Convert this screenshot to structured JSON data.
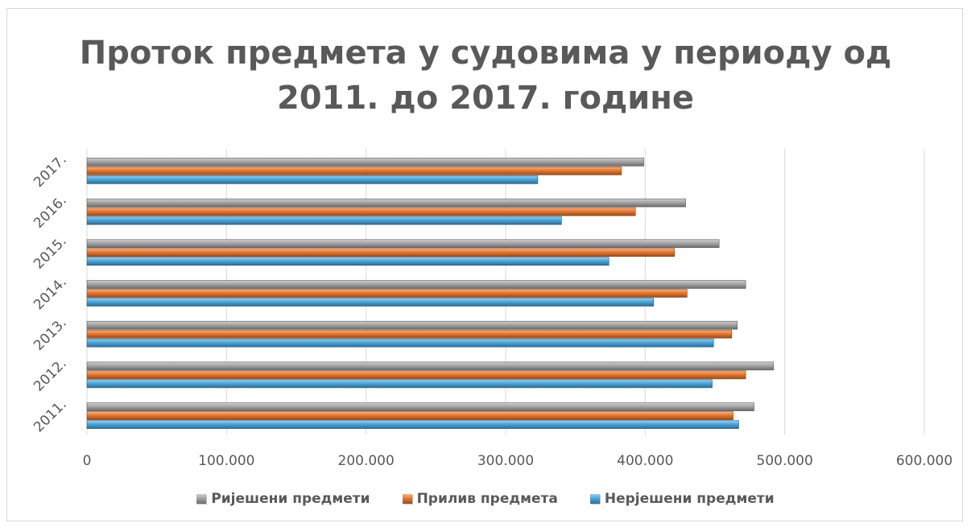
{
  "chart_data": {
    "type": "bar",
    "orientation": "horizontal",
    "title_line1": "Проток предмета у судовима у периоду од",
    "title_line2": "2011. до 2017. године",
    "categories": [
      "2011.",
      "2012.",
      "2013.",
      "2014.",
      "2015.",
      "2016.",
      "2017."
    ],
    "series": [
      {
        "name": "Нерјешени предмети",
        "color": "#4aa6dc",
        "values": [
          467000,
          448000,
          449000,
          406000,
          374000,
          340000,
          323000
        ]
      },
      {
        "name": "Прилив предмета",
        "color": "#e8772e",
        "values": [
          463000,
          472000,
          462000,
          430000,
          421000,
          393000,
          383000
        ]
      },
      {
        "name": "Ријешени предмети",
        "color": "#a5a5a5",
        "values": [
          478000,
          492000,
          466000,
          472000,
          453000,
          429000,
          399000
        ]
      }
    ],
    "x_ticks": [
      "0",
      "100.000",
      "200.000",
      "300.000",
      "400.000",
      "500.000",
      "600.000"
    ],
    "xlim": [
      0,
      600000
    ],
    "grid": true,
    "legend_position": "bottom",
    "legend_order": [
      "Ријешени предмети",
      "Прилив предмета",
      "Нерјешени предмети"
    ]
  }
}
